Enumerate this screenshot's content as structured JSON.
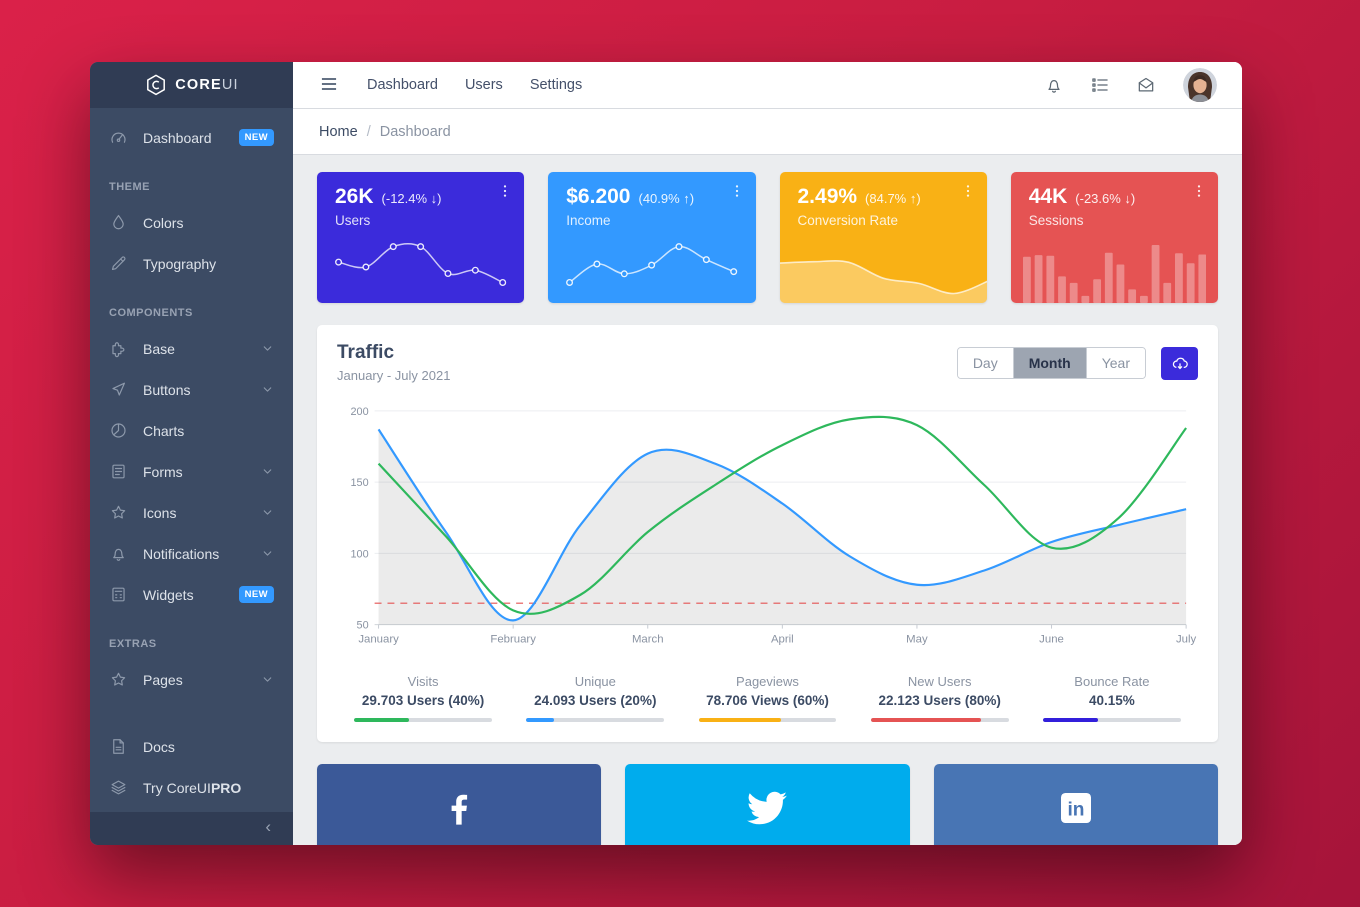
{
  "brand": {
    "text_main": "CORE",
    "text_accent": "UI"
  },
  "sidebar": {
    "toggler": "‹",
    "items": [
      {
        "type": "link",
        "label": "Dashboard",
        "icon": "speedometer",
        "badge": "NEW"
      },
      {
        "type": "title",
        "label": "THEME"
      },
      {
        "type": "link",
        "label": "Colors",
        "icon": "drop"
      },
      {
        "type": "link",
        "label": "Typography",
        "icon": "pencil"
      },
      {
        "type": "title",
        "label": "COMPONENTS"
      },
      {
        "type": "link",
        "label": "Base",
        "icon": "puzzle",
        "chevron": true
      },
      {
        "type": "link",
        "label": "Buttons",
        "icon": "cursor",
        "chevron": true
      },
      {
        "type": "link",
        "label": "Charts",
        "icon": "chart-pie"
      },
      {
        "type": "link",
        "label": "Forms",
        "icon": "notes",
        "chevron": true
      },
      {
        "type": "link",
        "label": "Icons",
        "icon": "star",
        "chevron": true
      },
      {
        "type": "link",
        "label": "Notifications",
        "icon": "bell",
        "chevron": true
      },
      {
        "type": "link",
        "label": "Widgets",
        "icon": "calculator",
        "badge": "NEW"
      },
      {
        "type": "title",
        "label": "EXTRAS"
      },
      {
        "type": "link",
        "label": "Pages",
        "icon": "star",
        "chevron": true
      },
      {
        "type": "spacer"
      },
      {
        "type": "link",
        "label": "Docs",
        "icon": "file"
      },
      {
        "type": "link",
        "label": "Try CoreUI",
        "label_suffix": "PRO",
        "icon": "layers"
      }
    ]
  },
  "header": {
    "nav": [
      "Dashboard",
      "Users",
      "Settings"
    ],
    "action_icons": [
      "bell",
      "list",
      "mail"
    ]
  },
  "breadcrumb": {
    "home": "Home",
    "separator": "/",
    "current": "Dashboard"
  },
  "stat_cards": [
    {
      "value": "26K",
      "delta": "(-12.4% ↓)",
      "label": "Users",
      "color": "#3b2bdb",
      "chart_key": "users_spark",
      "spark_style": "line"
    },
    {
      "value": "$6.200",
      "delta": "(40.9% ↑)",
      "label": "Income",
      "color": "#3399ff",
      "chart_key": "income_spark",
      "spark_style": "line"
    },
    {
      "value": "2.49%",
      "delta": "(84.7% ↑)",
      "label": "Conversion Rate",
      "color": "#f9b115",
      "chart_key": "conversion_spark",
      "spark_style": "area"
    },
    {
      "value": "44K",
      "delta": "(-23.6% ↓)",
      "label": "Sessions",
      "color": "#e55353",
      "chart_key": "sessions_bars",
      "spark_style": "bar"
    }
  ],
  "traffic": {
    "title": "Traffic",
    "subtitle": "January - July 2021",
    "ranges": [
      "Day",
      "Month",
      "Year"
    ],
    "active_range": "Month",
    "download_icon": "cloud-download"
  },
  "chart_data": [
    {
      "key": "traffic_main",
      "type": "line",
      "title": "Traffic",
      "subtitle": "January - July 2021",
      "categories": [
        "January",
        "February",
        "March",
        "April",
        "May",
        "June",
        "July"
      ],
      "ylim": [
        50,
        200
      ],
      "yticks": [
        50,
        100,
        150,
        200
      ],
      "grid": true,
      "legend": false,
      "series": [
        {
          "name": "visits-blue",
          "color": "#3399ff",
          "area_fill": "rgba(0,0,0,0.08)",
          "x": [
            0,
            0.5,
            1,
            1.5,
            2,
            2.5,
            3,
            3.5,
            4,
            4.5,
            5,
            5.5,
            6
          ],
          "values": [
            187,
            115,
            53,
            120,
            170,
            163,
            135,
            98,
            78,
            88,
            108,
            120,
            131
          ]
        },
        {
          "name": "unique-green",
          "color": "#2eb85c",
          "x": [
            0,
            0.5,
            1,
            1.5,
            2,
            2.5,
            3,
            3.5,
            4,
            4.5,
            5,
            5.5,
            6
          ],
          "values": [
            163,
            112,
            60,
            71,
            115,
            148,
            176,
            194,
            190,
            148,
            104,
            125,
            188
          ]
        }
      ],
      "reference_line": {
        "value": 65,
        "color": "#e55353",
        "style": "dashed"
      }
    },
    {
      "key": "users_spark",
      "type": "line",
      "values": [
        65,
        59,
        84,
        84,
        51,
        55,
        40
      ]
    },
    {
      "key": "income_spark",
      "type": "line",
      "values": [
        1,
        18,
        9,
        17,
        34,
        22,
        11
      ]
    },
    {
      "key": "conversion_spark",
      "type": "area",
      "values": [
        78,
        81,
        80,
        45,
        34,
        12,
        40
      ]
    },
    {
      "key": "sessions_bars",
      "type": "bar",
      "values": [
        78,
        81,
        80,
        45,
        34,
        12,
        40,
        85,
        65,
        23,
        12,
        98,
        34,
        84,
        67,
        82
      ]
    }
  ],
  "progress_stats": [
    {
      "label": "Visits",
      "value": "29.703 Users (40%)",
      "percent": 40,
      "color": "#2eb85c"
    },
    {
      "label": "Unique",
      "value": "24.093 Users (20%)",
      "percent": 20,
      "color": "#3399ff"
    },
    {
      "label": "Pageviews",
      "value": "78.706 Views (60%)",
      "percent": 60,
      "color": "#f9b115"
    },
    {
      "label": "New Users",
      "value": "22.123 Users (80%)",
      "percent": 80,
      "color": "#e55353"
    },
    {
      "label": "Bounce Rate",
      "value": "40.15%",
      "percent": 40,
      "color": "#321fdb"
    }
  ],
  "social_cards": [
    {
      "name": "facebook",
      "color": "#3b5998"
    },
    {
      "name": "twitter",
      "color": "#00aced"
    },
    {
      "name": "linkedin",
      "color": "#4875b4"
    }
  ]
}
